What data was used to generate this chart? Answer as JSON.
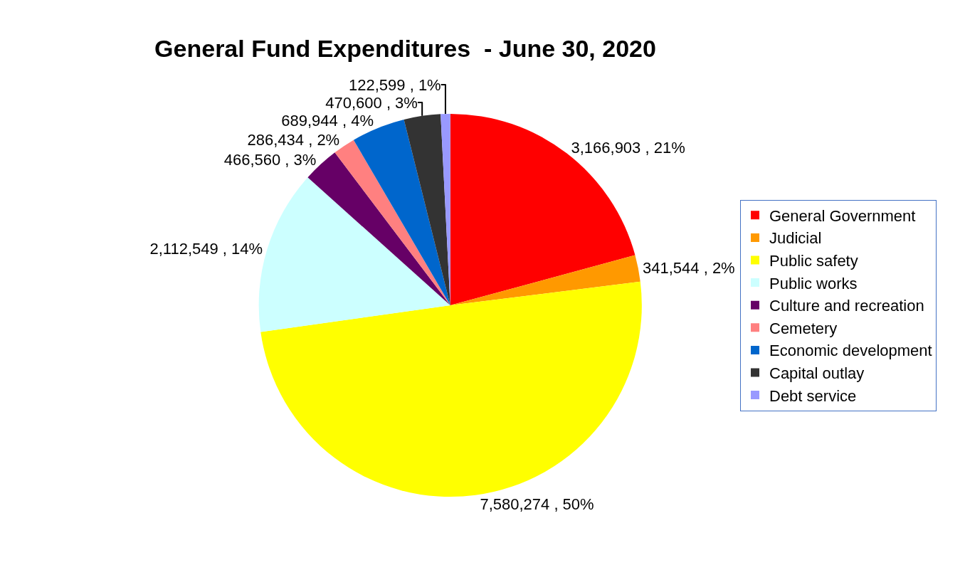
{
  "chart_data": {
    "type": "pie",
    "title": "General Fund Expenditures  - June 30, 2020",
    "categories": [
      "General Government",
      "Judicial",
      "Public safety",
      "Public works",
      "Culture and recreation",
      "Cemetery",
      "Economic development",
      "Capital outlay",
      "Debt service"
    ],
    "values": [
      3166903,
      341544,
      7580274,
      2112549,
      466560,
      286434,
      689944,
      470600,
      122599
    ],
    "value_labels": [
      "3,166,903 , 21%",
      "341,544 , 2%",
      "7,580,274 , 50%",
      "2,112,549 , 14%",
      "466,560 , 3%",
      "286,434 , 2%",
      "689,944 , 4%",
      "470,600 , 3%",
      "122,599 , 1%"
    ],
    "colors": [
      "#ff0000",
      "#ff9900",
      "#ffff00",
      "#ccffff",
      "#660066",
      "#ff8080",
      "#0066cc",
      "#333333",
      "#9999ff"
    ],
    "legend": "right"
  }
}
